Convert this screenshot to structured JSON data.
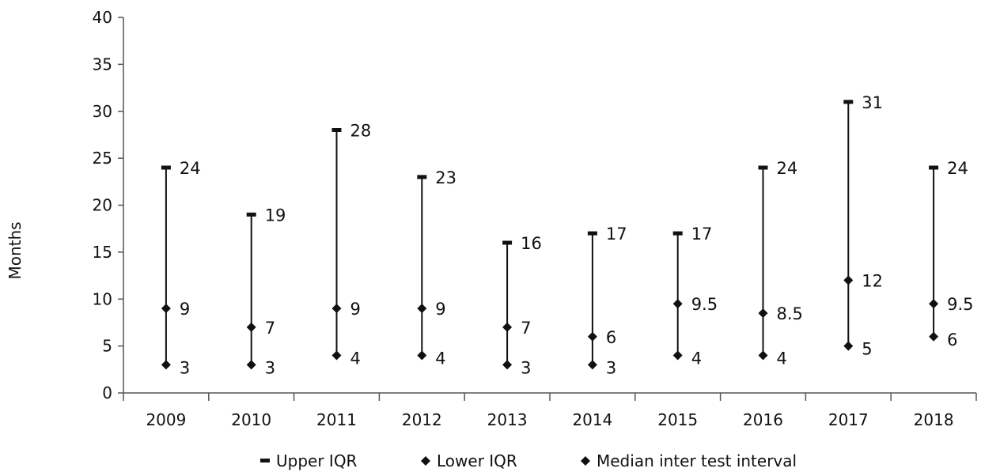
{
  "chart_data": {
    "type": "scatter",
    "title": "",
    "xlabel": "",
    "ylabel": "Months",
    "categories": [
      "2009",
      "2010",
      "2011",
      "2012",
      "2013",
      "2014",
      "2015",
      "2016",
      "2017",
      "2018"
    ],
    "ylim": [
      0,
      40
    ],
    "yticks": [
      0,
      5,
      10,
      15,
      20,
      25,
      30,
      35,
      40
    ],
    "grid": false,
    "legend_position": "bottom",
    "series": [
      {
        "name": "Upper IQR",
        "marker": "dash",
        "values": [
          24,
          19,
          28,
          23,
          16,
          17,
          17,
          24,
          31,
          24
        ],
        "labels": [
          "24",
          "19",
          "28",
          "23",
          "16",
          "17",
          "17",
          "24",
          "31",
          "24"
        ]
      },
      {
        "name": "Lower IQR",
        "marker": "diamond",
        "values": [
          3,
          3,
          4,
          4,
          3,
          3,
          4,
          4,
          5,
          6
        ],
        "labels": [
          "3",
          "3",
          "4",
          "4",
          "3",
          "3",
          "4",
          "4",
          "5",
          "6"
        ]
      },
      {
        "name": "Median inter test interval",
        "marker": "diamond",
        "values": [
          9,
          7,
          9,
          9,
          7,
          6,
          9.5,
          8.5,
          12,
          9.5
        ],
        "labels": [
          "9",
          "7",
          "9",
          "9",
          "7",
          "6",
          "9.5",
          "8.5",
          "12",
          "9.5"
        ]
      }
    ],
    "colors": {
      "marker": "#111111",
      "axis": "#555555",
      "text": "#111111"
    }
  }
}
